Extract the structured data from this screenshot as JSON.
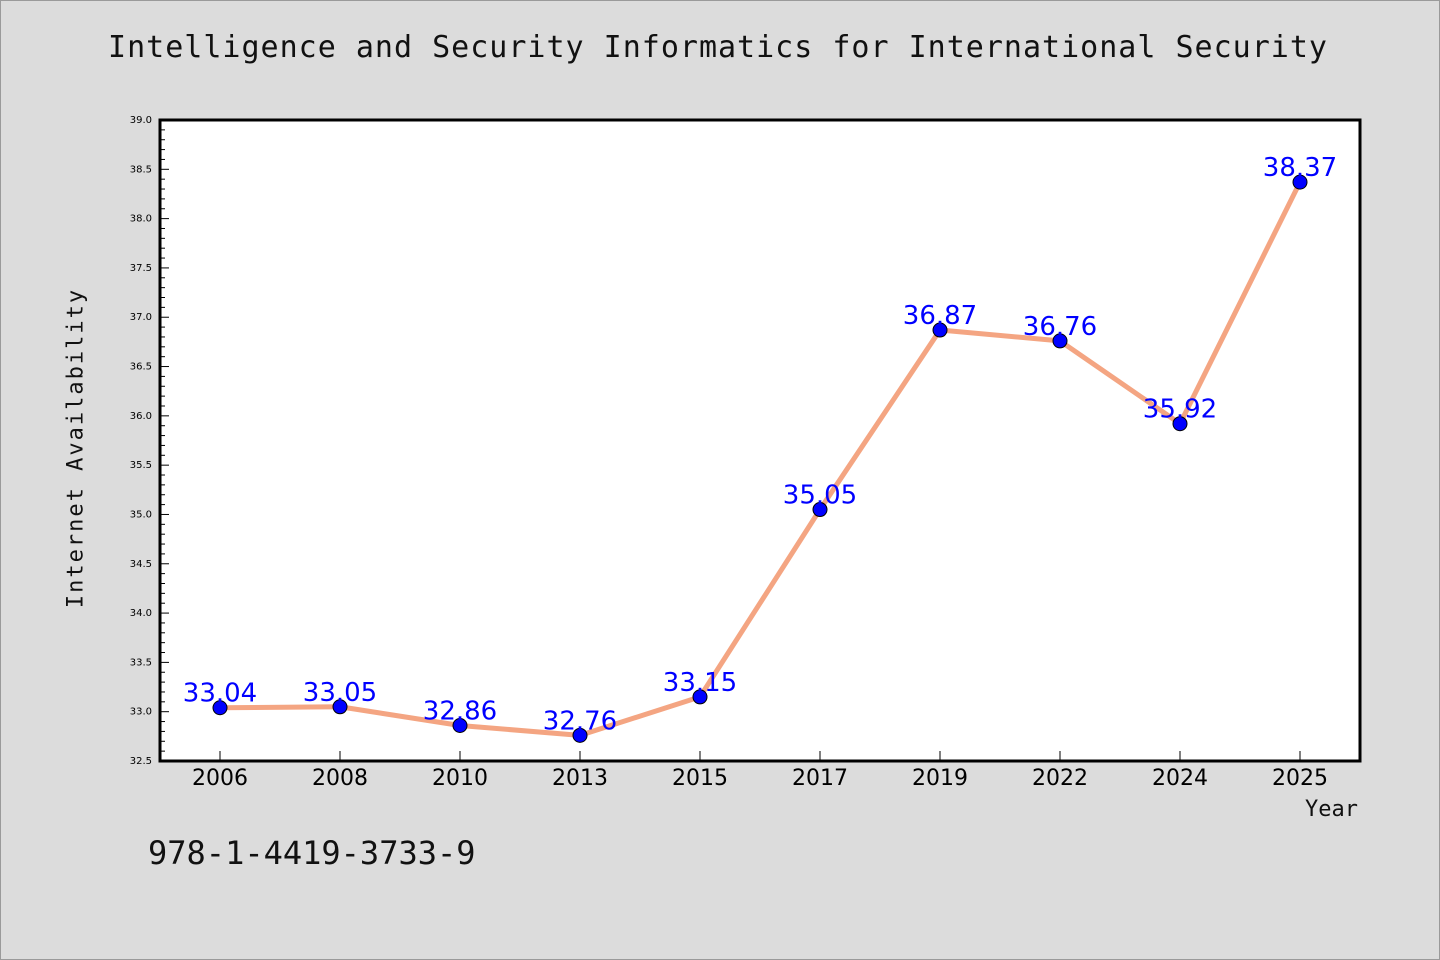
{
  "title": "Intelligence and Security Informatics for International Security",
  "isbn_text": "978-1-4419-3733-9",
  "colors": {
    "background": "#dcdcdc",
    "plot_background": "#ffffff",
    "line": "#f4a582",
    "marker": "#0000ff",
    "data_label": "#0000ff"
  },
  "chart_data": {
    "type": "line",
    "title": "Intelligence and Security Informatics for International Security",
    "xlabel": "Year",
    "ylabel": "Internet Availability",
    "categories": [
      "2006",
      "2008",
      "2010",
      "2013",
      "2015",
      "2017",
      "2019",
      "2022",
      "2024",
      "2025"
    ],
    "values": [
      33.04,
      33.05,
      32.86,
      32.76,
      33.15,
      35.05,
      36.87,
      36.76,
      35.92,
      38.37
    ],
    "data_labels": [
      "33.04",
      "33.05",
      "32.86",
      "32.76",
      "33.15",
      "35.05",
      "36.87",
      "36.76",
      "35.92",
      "38.37"
    ],
    "ylim": [
      32.5,
      39.0
    ],
    "yticks": [
      "32.5",
      "33.0",
      "33.5",
      "34.0",
      "34.5",
      "35.0",
      "35.5",
      "36.0",
      "36.5",
      "37.0",
      "37.5",
      "38.0",
      "38.5",
      "39.0"
    ],
    "grid": false,
    "legend": "none"
  }
}
